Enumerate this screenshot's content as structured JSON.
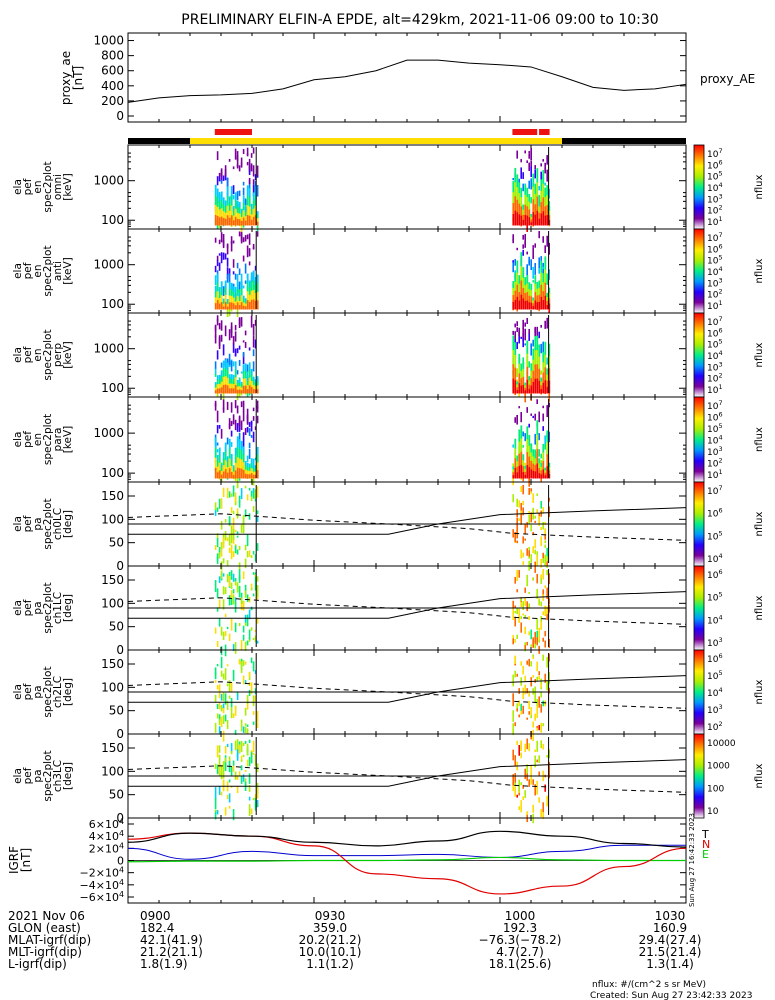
{
  "title": "PRELIMINARY ELFIN-A EPDE, alt=429km, 2021-11-06 09:00 to 10:30",
  "time_range_minutes": [
    0,
    90
  ],
  "colors": {
    "science_bar": "#ee1111",
    "sunlight_bar": "#ffdd00",
    "shadow_bar": "#000000",
    "igrf_t": "#000000",
    "igrf_n": "#e00000",
    "igrf_e": "#00cc00",
    "igrf_blue": "#0000cc"
  },
  "top_bars": {
    "black": [
      [
        0,
        10
      ],
      [
        70,
        90
      ]
    ],
    "yellow": [
      [
        10,
        70
      ]
    ],
    "red": [
      [
        14,
        20
      ],
      [
        62,
        66
      ],
      [
        66.3,
        68
      ]
    ]
  },
  "proxy_ae_panel": {
    "ylabel": "proxy_ae\n[nT]",
    "legend": "proxy_AE",
    "yticks": [
      "1000",
      "800",
      "600",
      "400",
      "200",
      "0"
    ],
    "ylim": [
      0,
      1100
    ]
  },
  "spec_panels": [
    {
      "ylabel": [
        "ela",
        "pef",
        "en",
        "spec2plot",
        "omni",
        "[keV]"
      ],
      "yticks": [
        "1000",
        "100"
      ],
      "cbar_label": "nflux",
      "cbar_ticks": [
        "10^7",
        "10^6",
        "10^5",
        "10^4",
        "10^3",
        "10^2",
        "10^1"
      ]
    },
    {
      "ylabel": [
        "ela",
        "pef",
        "en",
        "spec2plot",
        "anti",
        "[keV]"
      ],
      "yticks": [
        "1000",
        "100"
      ],
      "cbar_label": "nflux",
      "cbar_ticks": [
        "10^7",
        "10^6",
        "10^5",
        "10^4",
        "10^3",
        "10^2",
        "10^1"
      ]
    },
    {
      "ylabel": [
        "ela",
        "pef",
        "en",
        "spec2plot",
        "perp",
        "[keV]"
      ],
      "yticks": [
        "1000",
        "100"
      ],
      "cbar_label": "nflux",
      "cbar_ticks": [
        "10^7",
        "10^6",
        "10^5",
        "10^4",
        "10^3",
        "10^2",
        "10^1"
      ]
    },
    {
      "ylabel": [
        "ela",
        "pef",
        "en",
        "spec2plot",
        "para",
        "[keV]"
      ],
      "yticks": [
        "1000",
        "100"
      ],
      "cbar_label": "nflux",
      "cbar_ticks": [
        "10^7",
        "10^6",
        "10^5",
        "10^4",
        "10^3",
        "10^2",
        "10^1"
      ]
    }
  ],
  "pa_panels": [
    {
      "ylabel": [
        "ela",
        "pef",
        "pa",
        "spec2plot",
        "ch0LC",
        "[deg]"
      ],
      "yticks": [
        "150",
        "100",
        "50",
        "0"
      ],
      "cbar_label": "nflux",
      "cbar_ticks": [
        "10^7",
        "10^6",
        "10^5",
        "10^4"
      ]
    },
    {
      "ylabel": [
        "ela",
        "pef",
        "pa",
        "spec2plot",
        "ch1LC",
        "[deg]"
      ],
      "yticks": [
        "150",
        "100",
        "50",
        "0"
      ],
      "cbar_label": "nflux",
      "cbar_ticks": [
        "10^6",
        "10^5",
        "10^4",
        "10^3"
      ]
    },
    {
      "ylabel": [
        "ela",
        "pef",
        "pa",
        "spec2plot",
        "ch2LC",
        "[deg]"
      ],
      "yticks": [
        "150",
        "100",
        "50",
        "0"
      ],
      "cbar_label": "nflux",
      "cbar_ticks": [
        "10^6",
        "10^5",
        "10^4",
        "10^3",
        "10^2"
      ]
    },
    {
      "ylabel": [
        "ela",
        "pef",
        "pa",
        "spec2plot",
        "ch3LC",
        "[deg]"
      ],
      "yticks": [
        "150",
        "100",
        "50",
        "0"
      ],
      "cbar_label": "nflux",
      "cbar_ticks": [
        "10000",
        "1000",
        "100",
        "10"
      ]
    }
  ],
  "igrf_panel": {
    "ylabel": "IGRF\n[nT]",
    "yticks": [
      "6×10^4",
      "4×10^4",
      "2×10^4",
      "0",
      "−2×10^4",
      "−4×10^4",
      "−6×10^4"
    ],
    "legend": [
      "T",
      "N",
      "E"
    ],
    "side_text": "Sun Aug 27 16:42:33 2023"
  },
  "x_axis": {
    "row_labels": [
      "2021 Nov 06",
      "GLON (east)",
      "MLAT-igrf(dip)",
      "MLT-igrf(dip)",
      "L-igrf(dip)"
    ],
    "columns": [
      {
        "values": [
          "0900",
          "182.4",
          "42.1(41.9)",
          "21.2(21.1)",
          "1.8(1.9)"
        ]
      },
      {
        "values": [
          "0930",
          "359.0",
          "20.2(21.2)",
          "10.0(10.1)",
          "1.1(1.2)"
        ]
      },
      {
        "values": [
          "1000",
          "192.3",
          "−76.3(−78.2)",
          "4.7(2.7)",
          "18.1(25.6)"
        ]
      },
      {
        "values": [
          "1030",
          "160.9",
          "29.4(27.4)",
          "21.5(21.4)",
          "1.3(1.4)"
        ]
      }
    ]
  },
  "footer": {
    "units": "nflux: #/(cm^2 s sr MeV)",
    "created": "Created: Sun Aug 27 23:42:33 2023"
  },
  "chart_data": {
    "type": "line",
    "title": "PRELIMINARY ELFIN-A EPDE, alt=429km, 2021-11-06 09:00 to 10:30",
    "x_unit": "minutes after 09:00 UT",
    "series": [
      {
        "name": "proxy_AE",
        "x": [
          0,
          5,
          10,
          15,
          20,
          25,
          30,
          35,
          40,
          45,
          50,
          55,
          60,
          65,
          70,
          75,
          80,
          85,
          90
        ],
        "values": [
          180,
          240,
          270,
          280,
          300,
          360,
          480,
          520,
          600,
          740,
          740,
          700,
          680,
          650,
          520,
          380,
          340,
          360,
          420
        ]
      }
    ],
    "igrf": {
      "x": [
        0,
        10,
        20,
        30,
        40,
        50,
        60,
        70,
        80,
        90
      ],
      "T": [
        30000,
        45000,
        40000,
        30000,
        24000,
        32000,
        48000,
        40000,
        28000,
        22000
      ],
      "N": [
        35000,
        45000,
        40000,
        24000,
        -22000,
        -30000,
        -55000,
        -42000,
        -10000,
        20000
      ],
      "E": [
        -2000,
        -1000,
        -1000,
        0,
        0,
        1000,
        5000,
        1000,
        0,
        0
      ],
      "blue": [
        20000,
        2000,
        15000,
        8000,
        8000,
        10000,
        5000,
        15000,
        25000,
        25000
      ]
    },
    "spectrogram_bursts_minutes": [
      [
        14,
        21
      ],
      [
        62,
        68
      ]
    ]
  }
}
